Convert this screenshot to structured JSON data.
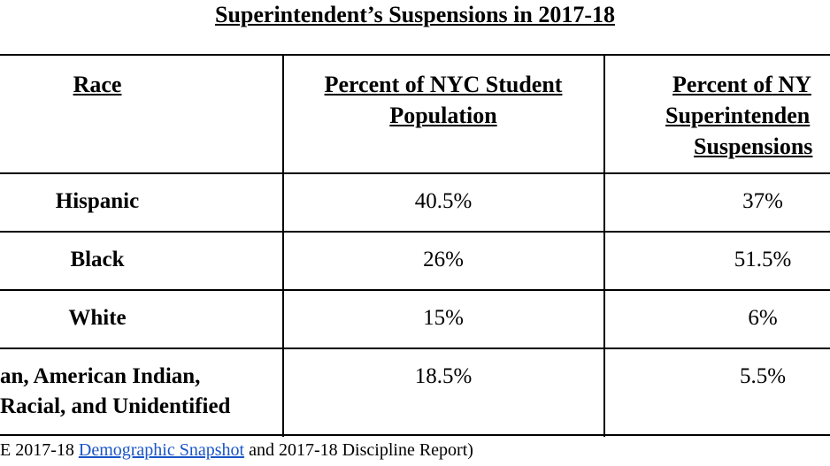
{
  "title": "Superintendent’s Suspensions in 2017-18",
  "table": {
    "header": [
      "Race",
      [
        "Percent of NYC Student",
        "Population"
      ],
      [
        "Percent of NY",
        "Superintenden",
        "Suspensions"
      ]
    ],
    "rows": [
      [
        [
          "Hispanic"
        ],
        "40.5%",
        "37%"
      ],
      [
        [
          "Black"
        ],
        "26%",
        "51.5%"
      ],
      [
        [
          "White"
        ],
        "15%",
        "6%"
      ],
      [
        [
          "an, American Indian,",
          "Racial, and Unidentified"
        ],
        "18.5%",
        "5.5%"
      ]
    ]
  },
  "footer": [
    "E 2017-18 ",
    "Demographic Snapshot",
    " and 2017-18 Discipline Report)"
  ]
}
